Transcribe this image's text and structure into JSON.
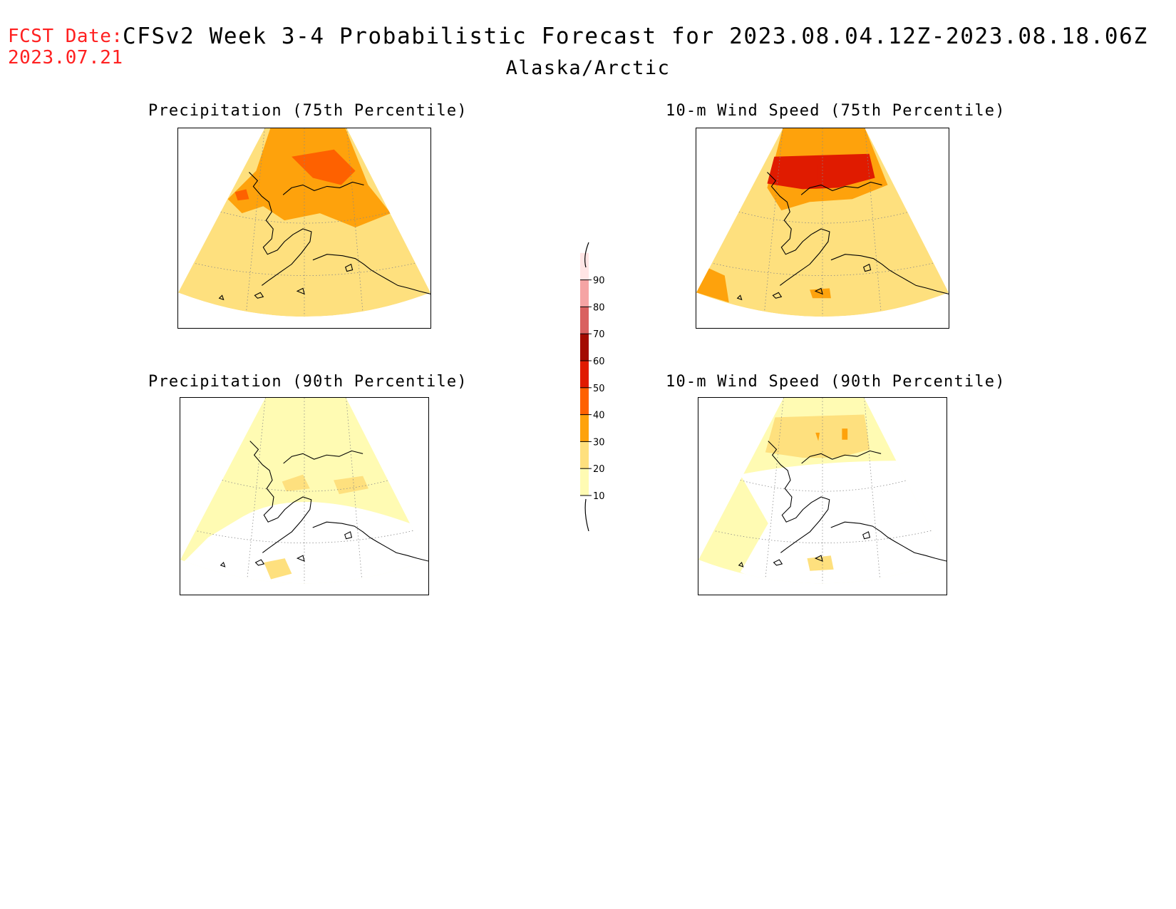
{
  "header": {
    "fcst_label": "FCST Date:",
    "fcst_date": "2023.07.21",
    "title": "CFSv2 Week 3-4 Probabilistic Forecast for 2023.08.04.12Z-2023.08.18.06Z",
    "region": "Alaska/Arctic"
  },
  "panels": [
    {
      "id": "precip75",
      "title": "Precipitation (75th Percentile)",
      "base_level": 20,
      "elevated_level": 30,
      "peak_level": 40
    },
    {
      "id": "wind75",
      "title": "10-m Wind Speed (75th Percentile)",
      "base_level": 20,
      "elevated_level": 30,
      "peak_level": 50
    },
    {
      "id": "precip90",
      "title": "Precipitation (90th Percentile)",
      "base_level": 10,
      "elevated_level": 20,
      "peak_level": 20
    },
    {
      "id": "wind90",
      "title": "10-m Wind Speed (90th Percentile)",
      "base_level": 10,
      "elevated_level": 20,
      "peak_level": 30
    }
  ],
  "colorbar": {
    "levels": [
      10,
      20,
      30,
      40,
      50,
      60,
      70,
      80,
      90
    ],
    "labels": [
      "10",
      "20",
      "30",
      "40",
      "50",
      "60",
      "70",
      "80",
      "90"
    ],
    "colors": [
      "#fffbb3",
      "#fee07e",
      "#fea20c",
      "#fe6100",
      "#e01b00",
      "#a30b00",
      "#d96160",
      "#f5a4a4",
      "#ffe5e5"
    ]
  }
}
